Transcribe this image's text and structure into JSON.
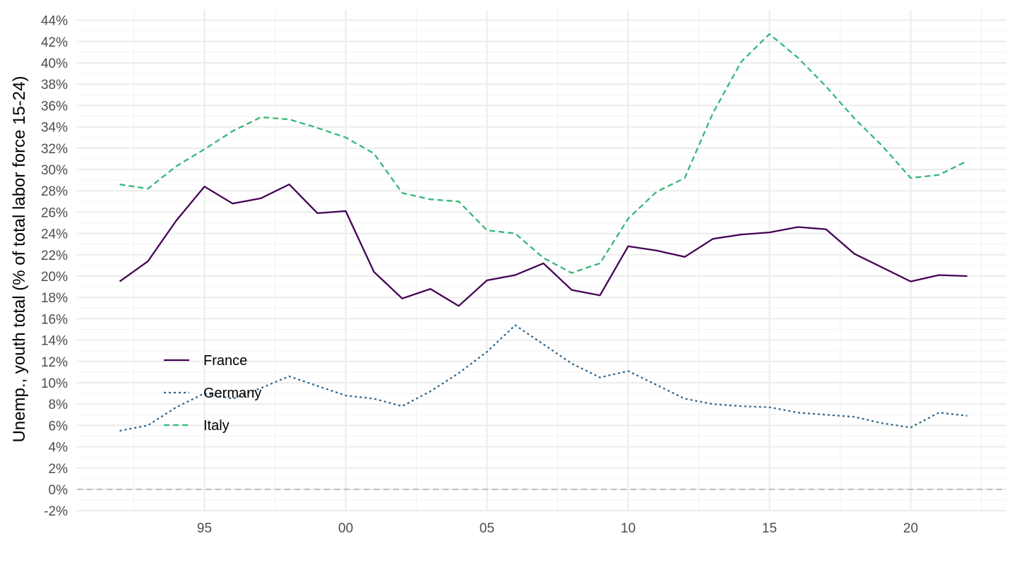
{
  "chart_data": {
    "type": "line",
    "title": "",
    "xlabel": "",
    "ylabel": "Unemp., youth total (% of total labor force 15-24)",
    "x_ticks": [
      {
        "value": 1995,
        "label": "95"
      },
      {
        "value": 2000,
        "label": "00"
      },
      {
        "value": 2005,
        "label": "05"
      },
      {
        "value": 2010,
        "label": "10"
      },
      {
        "value": 2015,
        "label": "15"
      },
      {
        "value": 2020,
        "label": "20"
      }
    ],
    "y_ticks": [
      -2,
      0,
      2,
      4,
      6,
      8,
      10,
      12,
      14,
      16,
      18,
      20,
      22,
      24,
      26,
      28,
      30,
      32,
      34,
      36,
      38,
      40,
      42,
      44
    ],
    "y_tick_suffix": "%",
    "xlim": [
      1990.5,
      2023.5
    ],
    "ylim": [
      -2.5,
      45
    ],
    "grid": true,
    "reference_line": 0,
    "legend_position": "inside-left",
    "x": [
      1992,
      1993,
      1994,
      1995,
      1996,
      1997,
      1998,
      1999,
      2000,
      2001,
      2002,
      2003,
      2004,
      2005,
      2006,
      2007,
      2008,
      2009,
      2010,
      2011,
      2012,
      2013,
      2014,
      2015,
      2016,
      2017,
      2018,
      2019,
      2020,
      2021,
      2022
    ],
    "series": [
      {
        "name": "France",
        "color": "#440154",
        "dash": "solid",
        "values": [
          19.5,
          21.4,
          25.2,
          28.4,
          26.8,
          27.3,
          28.6,
          25.9,
          26.1,
          20.4,
          17.9,
          18.8,
          17.2,
          19.6,
          20.1,
          21.2,
          18.7,
          18.2,
          22.8,
          22.4,
          21.8,
          23.5,
          23.9,
          24.1,
          24.6,
          24.4,
          22.1,
          20.8,
          19.5,
          20.1,
          20.0
        ]
      },
      {
        "name": "Germany",
        "color": "#31688e",
        "dash": "dotted",
        "values": [
          5.5,
          6.0,
          7.7,
          9.0,
          8.5,
          9.5,
          10.6,
          9.7,
          8.8,
          8.5,
          7.8,
          9.2,
          10.9,
          12.9,
          15.4,
          13.6,
          11.8,
          10.5,
          11.1,
          9.8,
          8.5,
          8.0,
          7.8,
          7.7,
          7.2,
          7.0,
          6.8,
          6.2,
          5.8,
          7.2,
          6.9
        ]
      },
      {
        "name": "Italy",
        "color": "#35b779",
        "dash": "dashed",
        "values": [
          28.6,
          28.2,
          30.3,
          31.9,
          33.6,
          34.9,
          34.7,
          33.9,
          33.0,
          31.5,
          27.8,
          27.2,
          27.0,
          24.3,
          24.0,
          21.7,
          20.3,
          21.2,
          25.4,
          27.9,
          29.2,
          35.3,
          40.1,
          42.7,
          40.5,
          37.8,
          34.8,
          32.2,
          29.2,
          29.5,
          30.8
        ]
      }
    ]
  }
}
